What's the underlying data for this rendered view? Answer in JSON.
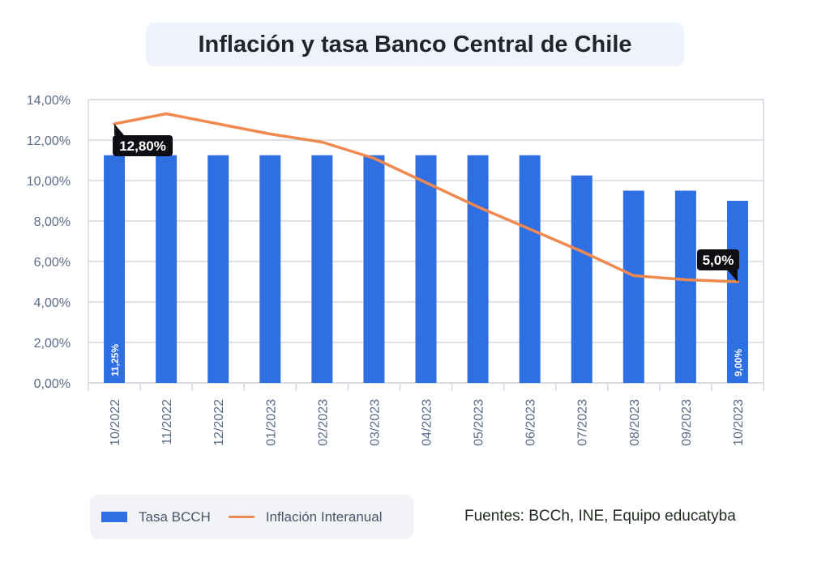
{
  "title": "Inflación y tasa Banco Central de Chile",
  "sources": "Fuentes:  BCCh, INE, Equipo educatyba",
  "legend": {
    "bar_label": "Tasa BCCH",
    "line_label": "Inflación Interanual"
  },
  "colors": {
    "bar": "#2f6fe4",
    "line": "#f0894f",
    "grid": "#d3d8e0",
    "axis_text": "#5b6b86",
    "callout_bg": "#0d0f12"
  },
  "chart_data": {
    "type": "bar",
    "categories": [
      "10/2022",
      "11/2022",
      "12/2022",
      "01/2023",
      "02/2023",
      "03/2023",
      "04/2023",
      "05/2023",
      "06/2023",
      "07/2023",
      "08/2023",
      "09/2023",
      "10/2023"
    ],
    "series": [
      {
        "name": "Tasa BCCH",
        "type": "bar",
        "values": [
          11.25,
          11.25,
          11.25,
          11.25,
          11.25,
          11.25,
          11.25,
          11.25,
          11.25,
          10.25,
          9.5,
          9.5,
          9.0
        ]
      },
      {
        "name": "Inflación Interanual",
        "type": "line",
        "values": [
          12.8,
          13.3,
          12.8,
          12.3,
          11.9,
          11.1,
          9.9,
          8.7,
          7.6,
          6.5,
          5.3,
          5.1,
          5.0
        ]
      }
    ],
    "ylim": [
      0,
      14
    ],
    "yticks": [
      "0,00%",
      "2,00%",
      "4,00%",
      "6,00%",
      "8,00%",
      "10,00%",
      "12,00%",
      "14,00%"
    ],
    "bar_labels": [
      {
        "index": 0,
        "text": "11,25%"
      },
      {
        "index": 12,
        "text": "9,00%"
      }
    ],
    "line_callouts": [
      {
        "index": 0,
        "text": "12,80%"
      },
      {
        "index": 12,
        "text": "5,0%"
      }
    ],
    "grid": true,
    "legend_position": "bottom-left"
  }
}
